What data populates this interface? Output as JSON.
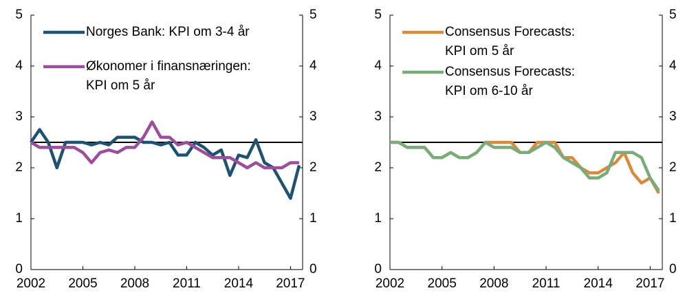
{
  "chart_data": [
    {
      "type": "line",
      "x": [
        2002,
        2002.5,
        2003,
        2003.5,
        2004,
        2004.5,
        2005,
        2005.5,
        2006,
        2006.5,
        2007,
        2007.5,
        2008,
        2008.5,
        2009,
        2009.5,
        2010,
        2010.5,
        2011,
        2011.5,
        2012,
        2012.5,
        2013,
        2013.5,
        2014,
        2014.5,
        2015,
        2015.5,
        2016,
        2016.5,
        2017,
        2017.5
      ],
      "series": [
        {
          "name": "Norges Bank: KPI om 3-4 år",
          "color": "#1f5170",
          "values": [
            2.5,
            2.75,
            2.5,
            2.0,
            2.5,
            2.5,
            2.5,
            2.45,
            2.5,
            2.45,
            2.6,
            2.6,
            2.6,
            2.5,
            2.5,
            2.45,
            2.5,
            2.25,
            2.25,
            2.5,
            2.4,
            2.25,
            2.35,
            1.85,
            2.25,
            2.2,
            2.55,
            2.1,
            2.0,
            1.7,
            1.4,
            2.05
          ]
        },
        {
          "name": "Økonomer i finansnæringen:\nKPI om 5 år",
          "color": "#9b4f9b",
          "values": [
            2.5,
            2.4,
            2.4,
            2.4,
            2.4,
            2.4,
            2.3,
            2.1,
            2.3,
            2.35,
            2.3,
            2.4,
            2.4,
            2.6,
            2.9,
            2.6,
            2.6,
            2.45,
            2.5,
            2.4,
            2.3,
            2.2,
            2.2,
            2.2,
            2.1,
            2.0,
            2.1,
            2.0,
            2.0,
            2.0,
            2.1,
            2.1
          ]
        }
      ],
      "xlim": [
        2002,
        2017.7
      ],
      "xticks": [
        2002,
        2005,
        2008,
        2011,
        2014,
        2017
      ],
      "ylim": [
        0,
        5
      ],
      "yticks": [
        0,
        1,
        2,
        3,
        4,
        5
      ],
      "y2lim": [
        0,
        5
      ],
      "y2ticks": [
        0,
        1,
        2,
        3,
        4,
        5
      ],
      "hline": 2.5,
      "legend": "upper left"
    },
    {
      "type": "line",
      "x": [
        2002,
        2002.5,
        2003,
        2003.5,
        2004,
        2004.5,
        2005,
        2005.5,
        2006,
        2006.5,
        2007,
        2007.5,
        2008,
        2008.5,
        2009,
        2009.5,
        2010,
        2010.5,
        2011,
        2011.5,
        2012,
        2012.5,
        2013,
        2013.5,
        2014,
        2014.5,
        2015,
        2015.5,
        2016,
        2016.5,
        2017,
        2017.5
      ],
      "series": [
        {
          "name": "Consensus Forecasts:\nKPI om 5 år",
          "color": "#d98b3d",
          "values": [
            2.5,
            2.5,
            2.4,
            2.4,
            2.4,
            2.2,
            2.2,
            2.3,
            2.2,
            2.2,
            2.3,
            2.5,
            2.5,
            2.5,
            2.5,
            2.3,
            2.3,
            2.5,
            2.5,
            2.5,
            2.2,
            2.2,
            2.0,
            1.9,
            1.9,
            2.0,
            2.1,
            2.3,
            1.9,
            1.7,
            1.8,
            1.5
          ]
        },
        {
          "name": "Consensus Forecasts:\nKPI om 6-10 år",
          "color": "#7aab7a",
          "values": [
            2.5,
            2.5,
            2.4,
            2.4,
            2.4,
            2.2,
            2.2,
            2.3,
            2.2,
            2.2,
            2.3,
            2.5,
            2.4,
            2.4,
            2.4,
            2.3,
            2.3,
            2.4,
            2.5,
            2.4,
            2.2,
            2.1,
            2.0,
            1.8,
            1.8,
            1.9,
            2.3,
            2.3,
            2.3,
            2.2,
            1.8,
            1.55
          ]
        }
      ],
      "xlim": [
        2002,
        2017.7
      ],
      "xticks": [
        2002,
        2005,
        2008,
        2011,
        2014,
        2017
      ],
      "ylim": [
        0,
        5
      ],
      "yticks": [
        0,
        1,
        2,
        3,
        4,
        5
      ],
      "y2lim": [
        0,
        5
      ],
      "y2ticks": [
        0,
        1,
        2,
        3,
        4,
        5
      ],
      "hline": 2.5,
      "legend": "upper left"
    }
  ]
}
